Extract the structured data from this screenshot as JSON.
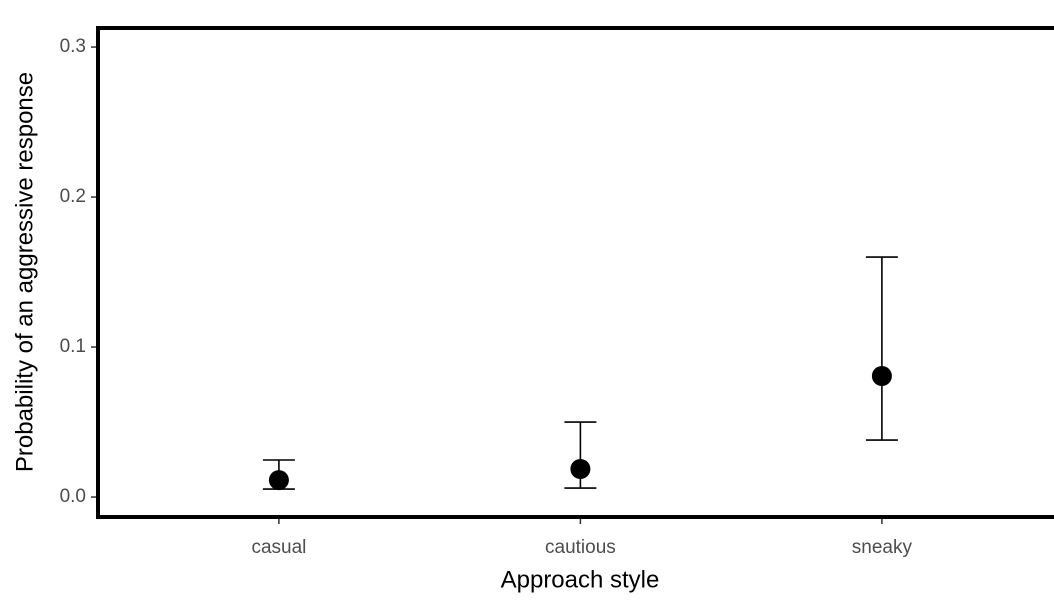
{
  "chart_data": {
    "type": "pointrange",
    "x_label": "Approach style",
    "y_label": "Probability of an aggressive response",
    "categories": [
      "casual",
      "cautious",
      "sneaky"
    ],
    "values": [
      0.0113,
      0.0187,
      0.0807
    ],
    "lower": [
      0.0053,
      0.006,
      0.038
    ],
    "upper": [
      0.0247,
      0.05,
      0.16
    ],
    "color": "#000000",
    "ylim": [
      -0.0133,
      0.3127
    ],
    "yticks": [
      {
        "value": 0,
        "label": "0.0"
      },
      {
        "value": 0.1,
        "label": "0.1"
      },
      {
        "value": 0.2,
        "label": "0.2"
      },
      {
        "value": 0.3,
        "label": "0.3"
      }
    ],
    "grid": false
  }
}
